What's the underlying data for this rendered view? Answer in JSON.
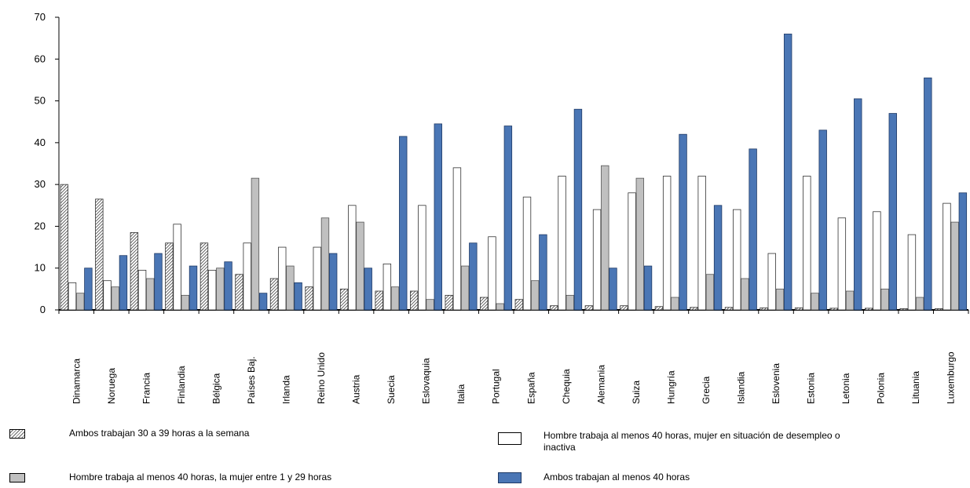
{
  "chart_data": {
    "type": "bar",
    "categories": [
      "Dinamarca",
      "Noruega",
      "Francia",
      "Finlandia",
      "Bélgica",
      "Países Baj.",
      "Irlanda",
      "Reino Unido",
      "Austria",
      "Suecia",
      "Eslovaquia",
      "Italia",
      "Portugal",
      "España",
      "Chequia",
      "Alemania",
      "Suiza",
      "Hungría",
      "Grecia",
      "Islandia",
      "Eslovenia",
      "Estonia",
      "Letonia",
      "Polonia",
      "Lituania",
      "Luxemburgo"
    ],
    "series": [
      {
        "name": "Ambos trabajan 30 a 39 horas a la semana",
        "values": [
          30,
          26.5,
          18.5,
          16,
          16,
          8.5,
          7.5,
          5.5,
          5,
          4.5,
          4.5,
          3.5,
          3,
          2.5,
          1,
          1,
          1,
          0.8,
          0.6,
          0.6,
          0.5,
          0.5,
          0.4,
          0.4,
          0.3,
          0.3
        ]
      },
      {
        "name": "Hombre trabaja al menos 40 horas, mujer en situación de desempleo o inactiva",
        "values": [
          6.5,
          7,
          9.5,
          20.5,
          9.5,
          16,
          15,
          15,
          25,
          11,
          25,
          34,
          17.5,
          27,
          32,
          24,
          28,
          32,
          32,
          24,
          13.5,
          32,
          22,
          23.5,
          18,
          25.5
        ]
      },
      {
        "name": "Hombre trabaja al menos 40 horas, la mujer entre 1 y 29 horas",
        "values": [
          4,
          5.5,
          7.5,
          3.5,
          10,
          31.5,
          10.5,
          22,
          21,
          5.5,
          2.5,
          10.5,
          1.5,
          7,
          3.5,
          34.5,
          31.5,
          3,
          8.5,
          7.5,
          5,
          4,
          4.5,
          5,
          3,
          21
        ]
      },
      {
        "name": "Ambos trabajan al menos 40 horas",
        "values": [
          10,
          13,
          13.5,
          10.5,
          11.5,
          4,
          6.5,
          13.5,
          10,
          41.5,
          44.5,
          16,
          44,
          18,
          48,
          10,
          10.5,
          42,
          25,
          38.5,
          66,
          43,
          50.5,
          47,
          55.5,
          28
        ]
      }
    ],
    "ylim": [
      0,
      70
    ],
    "yticks": [
      0,
      10,
      20,
      30,
      40,
      50,
      60,
      70
    ],
    "grid": false,
    "legend_position": "bottom",
    "colors": {
      "hatched": "#ffffff",
      "white": "#ffffff",
      "gray": "#c0c0c0",
      "blue": "#4a76b5",
      "blue_edge": "#1f3a66",
      "axis": "#000000"
    }
  },
  "legend": {
    "items": [
      {
        "label": "Ambos trabajan 30 a 39 horas a la semana"
      },
      {
        "label": "Hombre trabaja al menos 40 horas, mujer en situación de desempleo o inactiva"
      },
      {
        "label": "Hombre trabaja al menos 40 horas, la mujer entre 1 y 29 horas"
      },
      {
        "label": "Ambos trabajan al menos 40 horas"
      }
    ]
  }
}
